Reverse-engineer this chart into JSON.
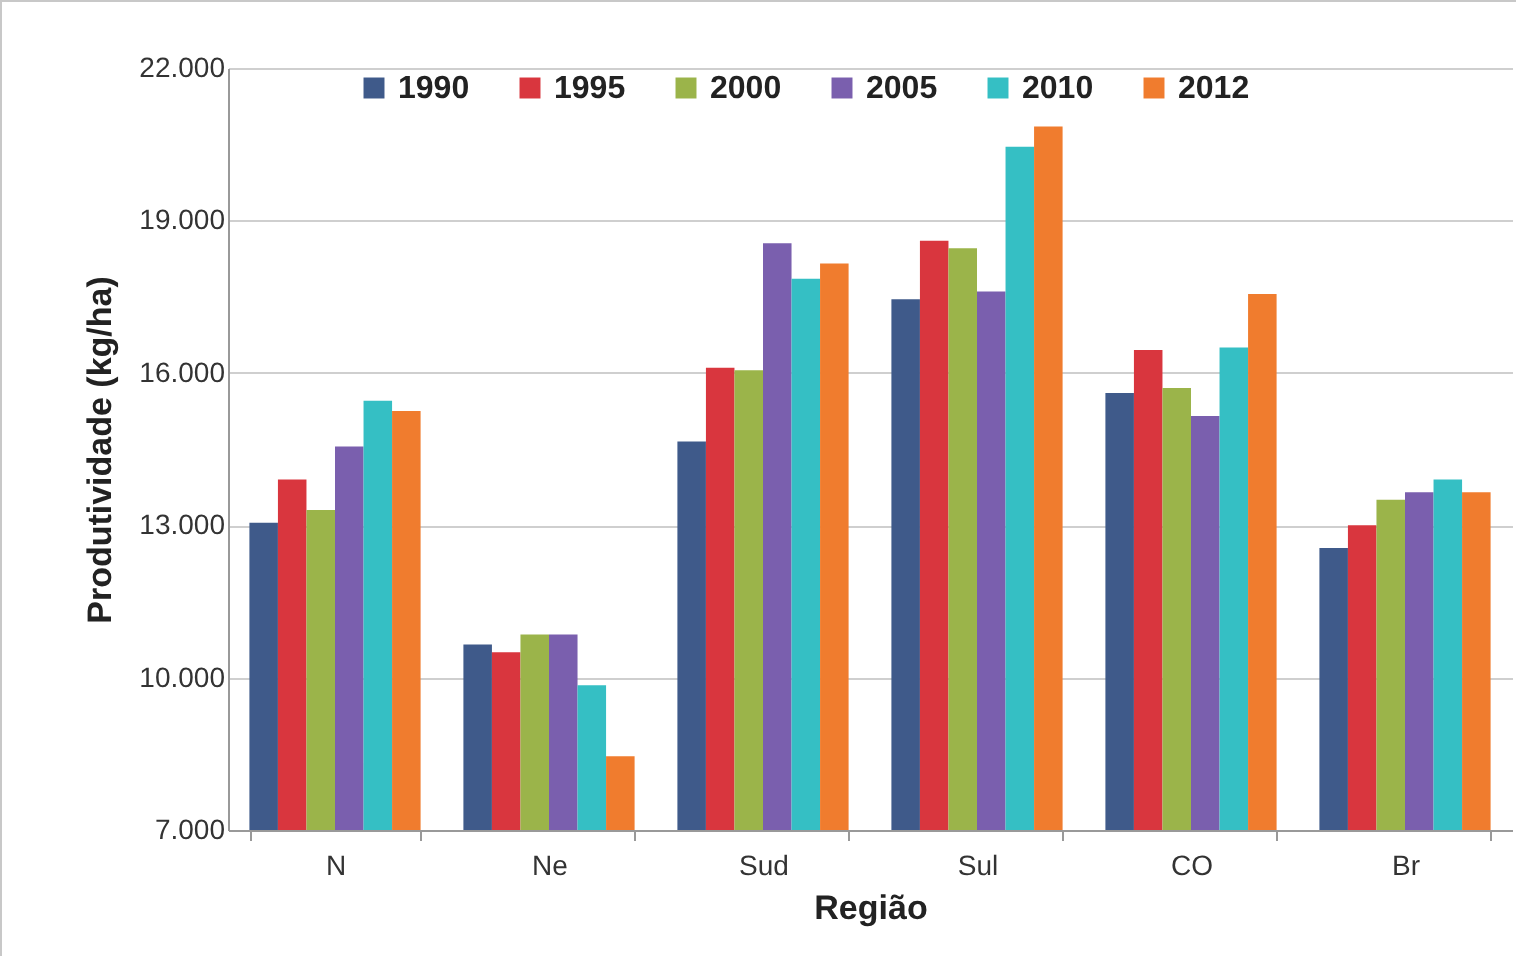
{
  "chart_data": {
    "type": "bar",
    "xlabel": "Região",
    "ylabel": "Produtividade (kg/ha)",
    "categories": [
      "N",
      "Ne",
      "Sud",
      "Sul",
      "CO",
      "Br"
    ],
    "series": [
      {
        "name": "1990",
        "color": "#3f5a8a",
        "values": [
          13050,
          10650,
          14650,
          17450,
          15600,
          12550
        ]
      },
      {
        "name": "1995",
        "color": "#d9363e",
        "values": [
          13900,
          10500,
          16100,
          18600,
          16450,
          13000
        ]
      },
      {
        "name": "2000",
        "color": "#9bb44a",
        "values": [
          13300,
          10850,
          16050,
          18450,
          15700,
          13500
        ]
      },
      {
        "name": "2005",
        "color": "#7a5fae",
        "values": [
          14550,
          10850,
          18550,
          17600,
          15150,
          13650
        ]
      },
      {
        "name": "2010",
        "color": "#35bfc4",
        "values": [
          15450,
          9850,
          17850,
          20450,
          16500,
          13900
        ]
      },
      {
        "name": "2012",
        "color": "#f07c2e",
        "values": [
          15250,
          8450,
          18150,
          20850,
          17550,
          13650
        ]
      }
    ],
    "ylim": [
      7000,
      22000
    ],
    "yticks": [
      {
        "value": 7000,
        "label": "7.000"
      },
      {
        "value": 10000,
        "label": "10.000"
      },
      {
        "value": 13000,
        "label": "13.000"
      },
      {
        "value": 16000,
        "label": "16.000"
      },
      {
        "value": 19000,
        "label": "19.000"
      },
      {
        "value": 22000,
        "label": "22.000"
      }
    ],
    "grid": "y",
    "legend": "top"
  }
}
